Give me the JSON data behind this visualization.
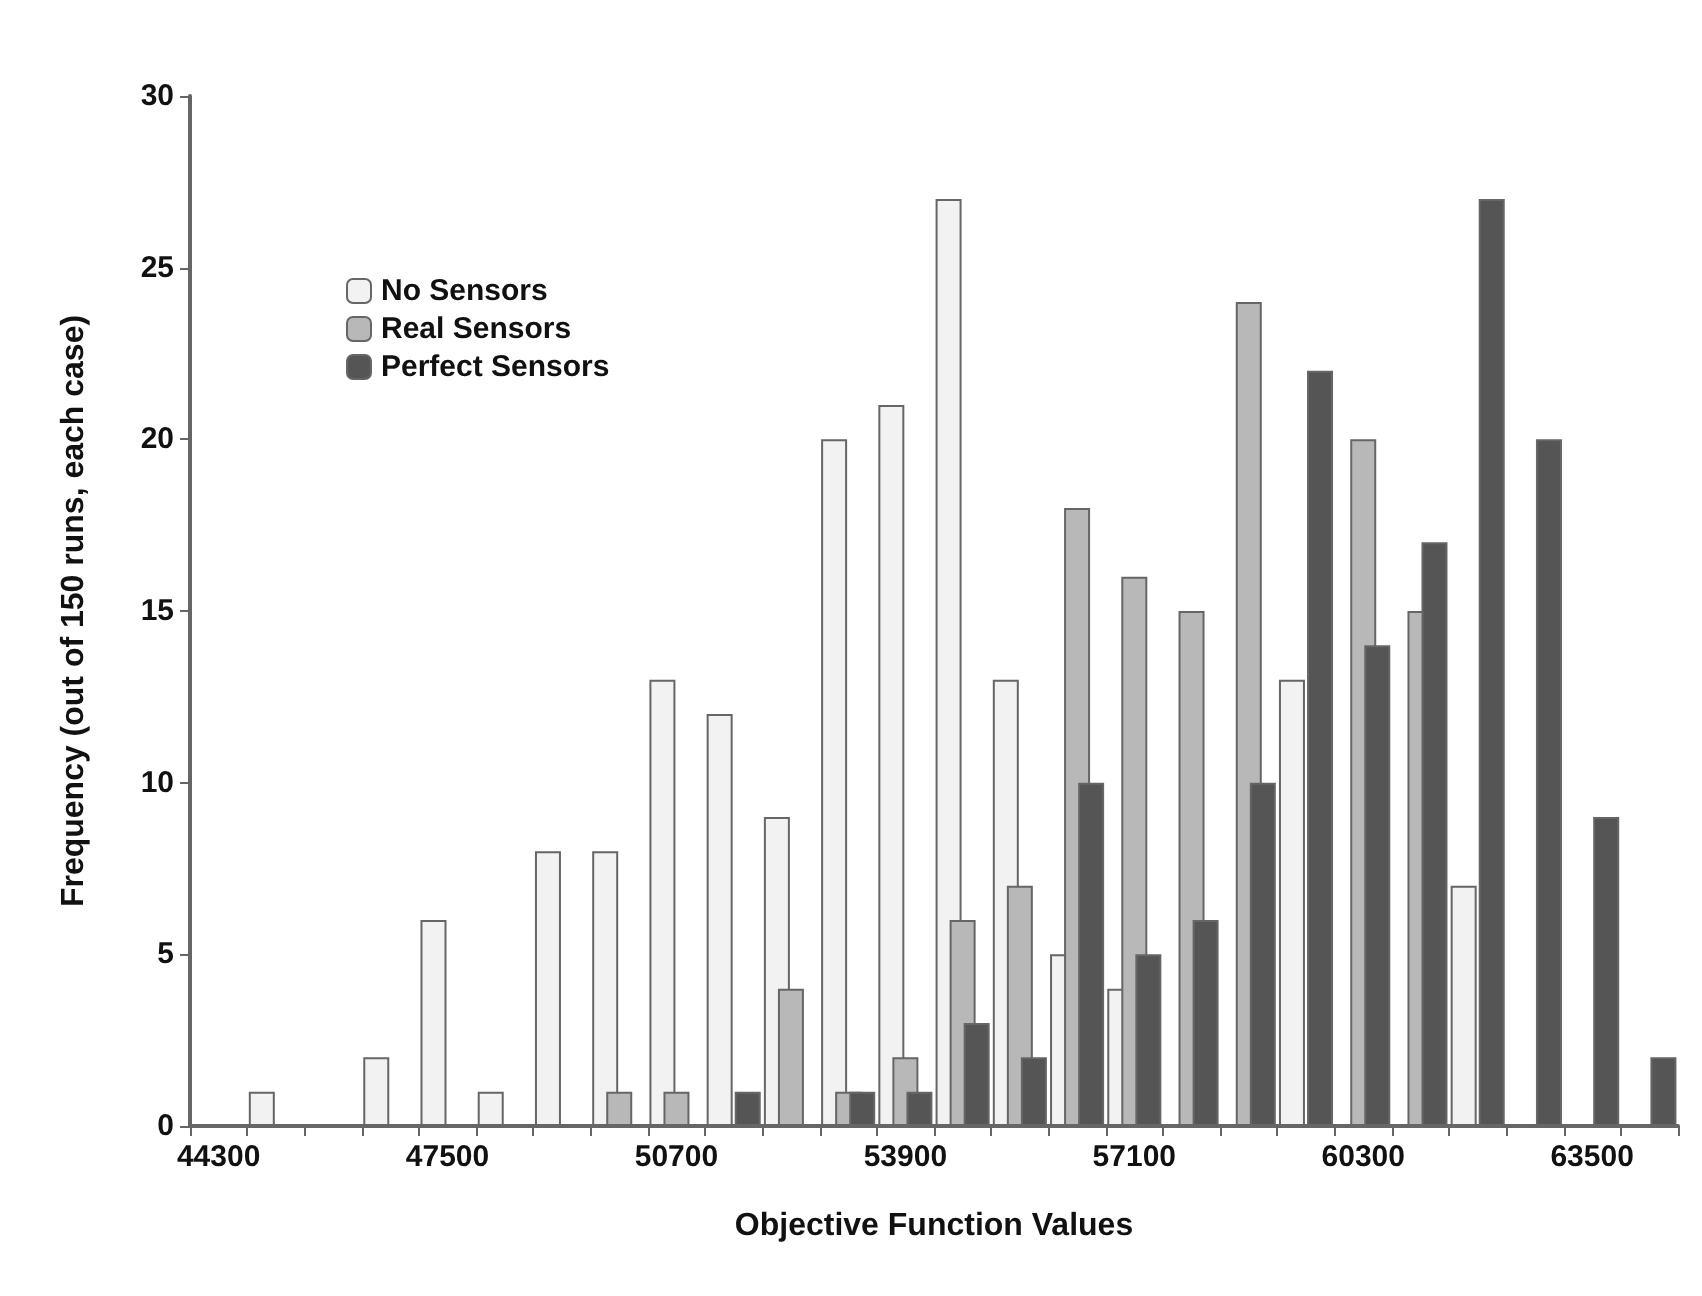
{
  "chart_data": {
    "type": "bar",
    "xlabel": "Objective Function Values",
    "ylabel": "Frequency (out of 150 runs, each case)",
    "categories": [
      "44300",
      null,
      null,
      null,
      "47500",
      null,
      null,
      null,
      "50700",
      null,
      null,
      null,
      "53900",
      null,
      null,
      null,
      "57100",
      null,
      null,
      null,
      "60300",
      null,
      null,
      null,
      "63500",
      null
    ],
    "series": [
      {
        "name": "No Sensors",
        "color": "#f2f2f2",
        "values": [
          0,
          1,
          0,
          2,
          6,
          1,
          8,
          8,
          13,
          12,
          9,
          20,
          21,
          27,
          13,
          5,
          4,
          0,
          0,
          13,
          0,
          0,
          7,
          0,
          0,
          0
        ]
      },
      {
        "name": "Real Sensors",
        "color": "#b8b8b8",
        "values": [
          0,
          0,
          0,
          0,
          0,
          0,
          0,
          1,
          1,
          0,
          4,
          1,
          2,
          6,
          7,
          18,
          16,
          15,
          24,
          0,
          20,
          15,
          0,
          0,
          0,
          0
        ]
      },
      {
        "name": "Perfect Sensors",
        "color": "#555555",
        "values": [
          0,
          0,
          0,
          0,
          0,
          0,
          0,
          0,
          0,
          1,
          0,
          1,
          1,
          3,
          2,
          10,
          5,
          6,
          10,
          22,
          14,
          17,
          27,
          20,
          9,
          2
        ]
      }
    ],
    "ylim": [
      0,
      30
    ],
    "yticks": [
      0,
      5,
      10,
      15,
      20,
      25,
      30
    ],
    "grid": false,
    "legend": "top left"
  }
}
